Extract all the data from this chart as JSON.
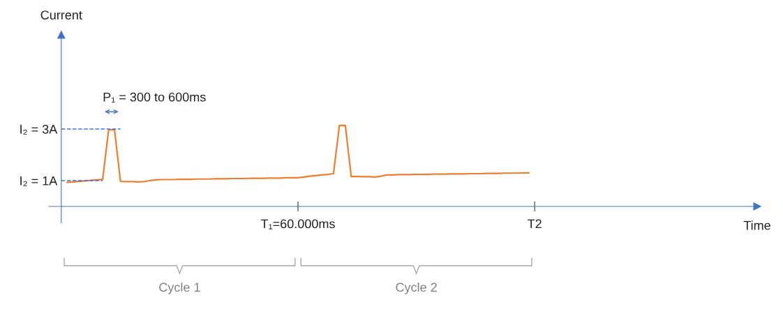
{
  "chart_data": {
    "type": "line",
    "ylabel": "Current",
    "categories": [
      null,
      null,
      null,
      null,
      null,
      null,
      null,
      null,
      null,
      null,
      null,
      null,
      null,
      null,
      null,
      null,
      null,
      null,
      null,
      null,
      null,
      null,
      null,
      null,
      null,
      null,
      null,
      null,
      null,
      null,
      null,
      null,
      null,
      null,
      null,
      null,
      null,
      null,
      null,
      null,
      "T₁=60.000ms",
      null,
      null,
      null,
      null,
      null,
      null,
      null,
      null,
      null,
      null,
      null,
      null,
      null,
      null,
      null,
      null,
      null,
      null,
      null,
      null,
      null,
      null,
      null,
      null,
      null,
      null,
      null,
      null,
      null,
      null,
      null,
      null,
      null,
      null,
      null,
      null,
      null,
      null,
      null,
      "T2"
    ],
    "series": [
      {
        "color": "#ed7d31",
        "values": [
          null,
          0.93,
          0.95,
          0.97,
          0.99,
          1.01,
          1.03,
          1.05,
          2.97,
          2.97,
          0.97,
          0.96,
          0.96,
          0.95,
          0.96,
          1.0,
          1.03,
          1.04,
          1.04,
          1.04,
          1.05,
          1.05,
          1.05,
          1.06,
          1.06,
          1.06,
          1.07,
          1.07,
          1.07,
          1.08,
          1.08,
          1.08,
          1.09,
          1.09,
          1.09,
          1.1,
          1.1,
          1.1,
          1.11,
          1.11,
          1.11,
          1.14,
          1.17,
          1.19,
          1.22,
          1.24,
          1.27,
          3.14,
          3.14,
          1.16,
          1.16,
          1.15,
          1.15,
          1.14,
          1.17,
          1.22,
          1.22,
          1.23,
          1.23,
          1.23,
          1.24,
          1.24,
          1.24,
          1.25,
          1.25,
          1.25,
          1.26,
          1.26,
          1.26,
          1.27,
          1.27,
          1.27,
          1.28,
          1.28,
          1.28,
          1.29,
          1.29,
          1.29,
          1.3,
          1.3,
          null
        ]
      }
    ],
    "ylim": [
      -0.65,
      6.65
    ],
    "yticks": [
      {
        "value": 1,
        "label": "I₂ = 1A"
      },
      {
        "value": 3,
        "label": "I₂ = 3A"
      }
    ],
    "ref_lines": [
      {
        "axis": "y",
        "value": 3,
        "color": "#4472c4",
        "line_style": "dashed"
      },
      {
        "axis": "y",
        "value": 1,
        "color": "#4472c4",
        "line_style": "dashed"
      }
    ],
    "annotations": [
      "P₁ = 300 to 600ms",
      "Cycle 1",
      "Cycle 2",
      "Time"
    ],
    "grid": false,
    "legend": false,
    "marker": "none",
    "line_style": "solid"
  }
}
